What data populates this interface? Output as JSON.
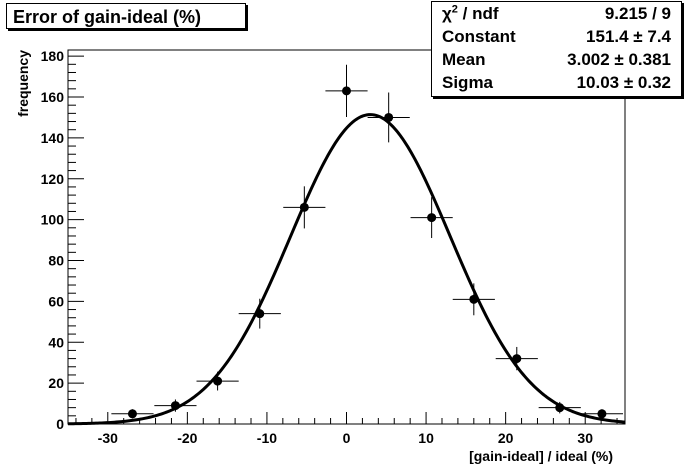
{
  "chart_data": {
    "type": "scatter",
    "title": "Error of gain-ideal (%)",
    "xlabel": "[gain-ideal] / ideal (%)",
    "ylabel": "frequency",
    "xlim": [
      -35,
      35
    ],
    "ylim": [
      0,
      183
    ],
    "x_ticks": [
      -30,
      -20,
      -10,
      0,
      10,
      20,
      30
    ],
    "y_ticks": [
      0,
      20,
      40,
      60,
      80,
      100,
      120,
      140,
      160,
      180
    ],
    "bin_half_width": 2.65,
    "series": [
      {
        "x": [
          -26.9,
          -21.5,
          -16.2,
          -10.9,
          -5.3,
          0.0,
          5.3,
          10.7,
          16.0,
          21.4,
          26.8,
          32.1
        ],
        "y": [
          5,
          9,
          21,
          54,
          106,
          163,
          150,
          101,
          61,
          32,
          8,
          5
        ],
        "yerr": [
          2.2,
          3.0,
          4.6,
          7.3,
          10.3,
          12.8,
          12.2,
          10.0,
          7.8,
          5.7,
          2.8,
          2.2
        ]
      }
    ],
    "fit": {
      "type": "gaussian",
      "constant": 151.4,
      "mean": 3.002,
      "sigma": 10.03
    },
    "grid": false,
    "legend": "none"
  },
  "stats": [
    {
      "label": "ndf",
      "value": "9.215 / 9"
    },
    {
      "label": "Constant",
      "value": "151.4 ± 7.4"
    },
    {
      "label": "Mean",
      "value": "3.002 ± 0.381"
    },
    {
      "label": "Sigma",
      "value": "10.03 ± 0.32"
    }
  ]
}
